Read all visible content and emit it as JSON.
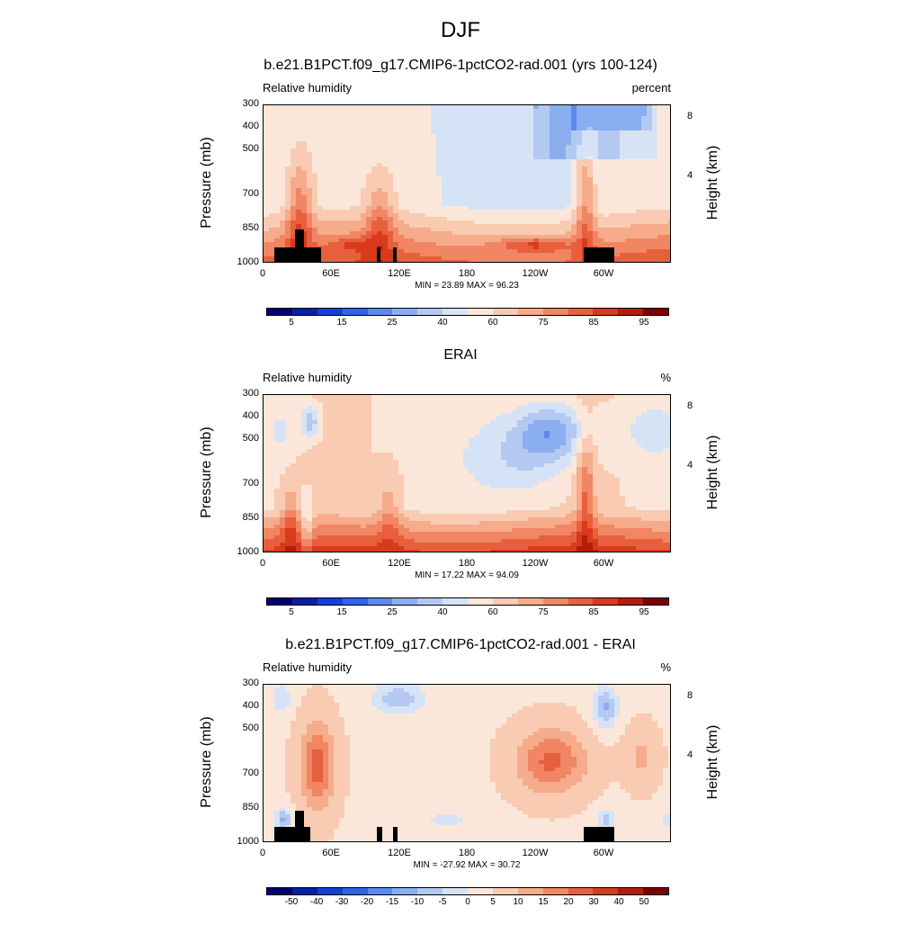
{
  "title": "DJF",
  "chart_data": [
    {
      "type": "heatmap",
      "title": "b.e21.B1PCT.f09_g17.CMIP6-1pctCO2-rad.001 (yrs 100-124)",
      "variable": "Relative humidity",
      "units": "percent",
      "ylabel": "Pressure (mb)",
      "ylabel_right": "Height (km)",
      "x_ticks": [
        "0",
        "60E",
        "120E",
        "180",
        "120W",
        "60W"
      ],
      "y_ticks": [
        "300",
        "400",
        "500",
        "700",
        "850",
        "1000"
      ],
      "y_ticks_right": [
        "8",
        "4"
      ],
      "stats": "MIN =  23.89  MAX =  96.23",
      "min": 23.89,
      "max": 96.23,
      "colorbar_labels": [
        "5",
        "15",
        "25",
        "40",
        "60",
        "75",
        "85",
        "95"
      ],
      "description_of_field": "humid (85-95%) boundary layer below 850 mb, moist tropical plumes near 30E, 100E-120E and 80W, drier upper levels over the Pacific"
    },
    {
      "type": "heatmap",
      "title": "ERAI",
      "variable": "Relative humidity",
      "units": "%",
      "ylabel": "Pressure (mb)",
      "ylabel_right": "Height (km)",
      "x_ticks": [
        "0",
        "60E",
        "120E",
        "180",
        "120W",
        "60W"
      ],
      "y_ticks": [
        "300",
        "400",
        "500",
        "700",
        "850",
        "1000"
      ],
      "y_ticks_right": [
        "8",
        "4"
      ],
      "stats": "MIN =  17.22  MAX =  94.09",
      "min": 17.22,
      "max": 94.09,
      "colorbar_labels": [
        "5",
        "15",
        "25",
        "40",
        "60",
        "75",
        "85",
        "95"
      ]
    },
    {
      "type": "heatmap",
      "title": "b.e21.B1PCT.f09_g17.CMIP6-1pctCO2-rad.001 - ERAI",
      "variable": "Relative humidity",
      "units": "%",
      "ylabel": "Pressure (mb)",
      "ylabel_right": "Height (km)",
      "x_ticks": [
        "0",
        "60E",
        "120E",
        "180",
        "120W",
        "60W"
      ],
      "y_ticks": [
        "300",
        "400",
        "500",
        "700",
        "850",
        "1000"
      ],
      "y_ticks_right": [
        "8",
        "4"
      ],
      "stats": "MIN = -27.92  MAX =  30.72",
      "min": -27.92,
      "max": 30.72,
      "colorbar_labels": [
        "-50",
        "-40",
        "-30",
        "-20",
        "-15",
        "-10",
        "-5",
        "0",
        "5",
        "10",
        "15",
        "20",
        "30",
        "40",
        "50"
      ]
    }
  ],
  "colors": {
    "colormap": [
      "#00007a",
      "#0a1fa8",
      "#1340d6",
      "#2e63ea",
      "#5c89ef",
      "#8aaeef",
      "#b3c9f2",
      "#d6e3f6",
      "#fbe7d9",
      "#f9cbb2",
      "#f6ab8b",
      "#f08663",
      "#e85f3d",
      "#d83b1c",
      "#b51c0b",
      "#7e0000"
    ],
    "topography": "#000000"
  }
}
